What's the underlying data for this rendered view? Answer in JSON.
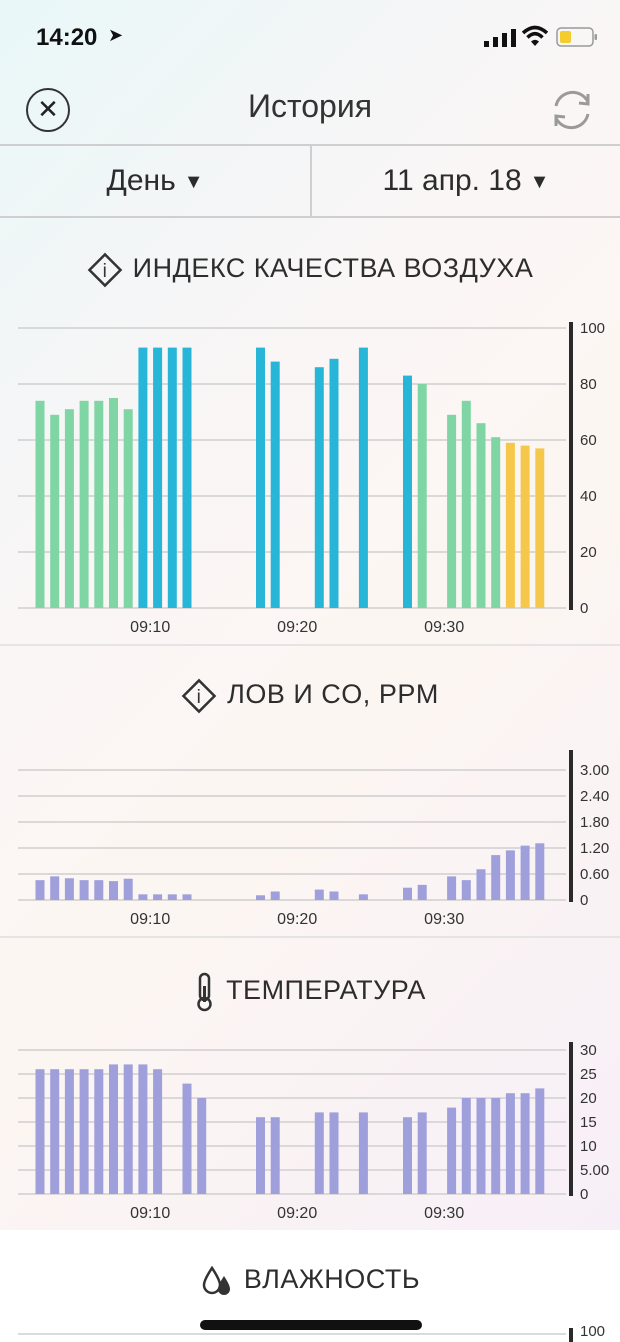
{
  "status": {
    "time": "14:20",
    "arrow": "➤"
  },
  "nav": {
    "title": "История",
    "close": "✕"
  },
  "filters": {
    "period": "День",
    "date": "11 апр. 18",
    "dropdown_glyph": "▼"
  },
  "colors": {
    "green": "#7fd5a4",
    "blue": "#27b6d8",
    "yellow": "#f5c84c",
    "purple": "#9f9fdc",
    "axis": "#2a2a2a",
    "grid": "#cfcfcf"
  },
  "aqi": {
    "title": "ИНДЕКС КАЧЕСТВА ВОЗДУХА",
    "icon": "info-diamond-icon",
    "chart_data": {
      "type": "bar",
      "ylim": [
        0,
        100
      ],
      "yticks": [
        "100",
        "80",
        "60",
        "40",
        "20",
        "0"
      ],
      "xticks": [
        "09:10",
        "09:20",
        "09:30"
      ],
      "grid": "horizontal",
      "bars": [
        {
          "t": "09:04",
          "v": 74,
          "c": "green"
        },
        {
          "t": "09:05",
          "v": 69,
          "c": "green"
        },
        {
          "t": "09:06",
          "v": 71,
          "c": "green"
        },
        {
          "t": "09:07",
          "v": 74,
          "c": "green"
        },
        {
          "t": "09:08",
          "v": 74,
          "c": "green"
        },
        {
          "t": "09:09",
          "v": 75,
          "c": "green"
        },
        {
          "t": "09:10",
          "v": 71,
          "c": "green"
        },
        {
          "t": "09:11",
          "v": 93,
          "c": "blue"
        },
        {
          "t": "09:12",
          "v": 93,
          "c": "blue"
        },
        {
          "t": "09:13",
          "v": 93,
          "c": "blue"
        },
        {
          "t": "09:14",
          "v": 93,
          "c": "blue"
        },
        {
          "t": "09:19",
          "v": 93,
          "c": "blue"
        },
        {
          "t": "09:20",
          "v": 88,
          "c": "blue"
        },
        {
          "t": "09:23",
          "v": 86,
          "c": "blue"
        },
        {
          "t": "09:24",
          "v": 89,
          "c": "blue"
        },
        {
          "t": "09:26",
          "v": 93,
          "c": "blue"
        },
        {
          "t": "09:29",
          "v": 83,
          "c": "blue"
        },
        {
          "t": "09:30",
          "v": 80,
          "c": "green"
        },
        {
          "t": "09:32",
          "v": 69,
          "c": "green"
        },
        {
          "t": "09:33",
          "v": 74,
          "c": "green"
        },
        {
          "t": "09:34",
          "v": 66,
          "c": "green"
        },
        {
          "t": "09:35",
          "v": 61,
          "c": "green"
        },
        {
          "t": "09:36",
          "v": 59,
          "c": "yellow"
        },
        {
          "t": "09:37",
          "v": 58,
          "c": "yellow"
        },
        {
          "t": "09:38",
          "v": 57,
          "c": "yellow"
        }
      ]
    }
  },
  "voc": {
    "title": "ЛОВ И CO, PPM",
    "icon": "info-diamond-icon",
    "chart_data": {
      "type": "bar",
      "ylim": [
        0,
        3.3
      ],
      "yticks": [
        "3.00",
        "2.40",
        "1.80",
        "1.20",
        "0.60",
        "0"
      ],
      "xticks": [
        "09:10",
        "09:20",
        "09:30"
      ],
      "grid": "horizontal",
      "bars": [
        {
          "t": "09:04",
          "v": 0.42
        },
        {
          "t": "09:05",
          "v": 0.5
        },
        {
          "t": "09:06",
          "v": 0.46
        },
        {
          "t": "09:07",
          "v": 0.42
        },
        {
          "t": "09:08",
          "v": 0.42
        },
        {
          "t": "09:09",
          "v": 0.4
        },
        {
          "t": "09:10",
          "v": 0.45
        },
        {
          "t": "09:11",
          "v": 0.12
        },
        {
          "t": "09:12",
          "v": 0.12
        },
        {
          "t": "09:13",
          "v": 0.12
        },
        {
          "t": "09:14",
          "v": 0.12
        },
        {
          "t": "09:19",
          "v": 0.1
        },
        {
          "t": "09:20",
          "v": 0.18
        },
        {
          "t": "09:23",
          "v": 0.22
        },
        {
          "t": "09:24",
          "v": 0.18
        },
        {
          "t": "09:26",
          "v": 0.12
        },
        {
          "t": "09:29",
          "v": 0.26
        },
        {
          "t": "09:30",
          "v": 0.32
        },
        {
          "t": "09:32",
          "v": 0.5
        },
        {
          "t": "09:33",
          "v": 0.42
        },
        {
          "t": "09:34",
          "v": 0.65
        },
        {
          "t": "09:35",
          "v": 0.95
        },
        {
          "t": "09:36",
          "v": 1.05
        },
        {
          "t": "09:37",
          "v": 1.15
        },
        {
          "t": "09:38",
          "v": 1.2
        }
      ]
    }
  },
  "temp": {
    "title": "ТЕМПЕРАТУРА",
    "icon": "thermometer-icon",
    "chart_data": {
      "type": "bar",
      "ylim": [
        0,
        30
      ],
      "yticks": [
        "30",
        "25",
        "20",
        "15",
        "10",
        "5.00",
        "0"
      ],
      "xticks": [
        "09:10",
        "09:20",
        "09:30"
      ],
      "grid": "horizontal",
      "bars": [
        {
          "t": "09:04",
          "v": 26
        },
        {
          "t": "09:05",
          "v": 26
        },
        {
          "t": "09:06",
          "v": 26
        },
        {
          "t": "09:07",
          "v": 26
        },
        {
          "t": "09:08",
          "v": 26
        },
        {
          "t": "09:09",
          "v": 27
        },
        {
          "t": "09:10",
          "v": 27
        },
        {
          "t": "09:11",
          "v": 27
        },
        {
          "t": "09:12",
          "v": 26
        },
        {
          "t": "09:14",
          "v": 23
        },
        {
          "t": "09:15",
          "v": 20
        },
        {
          "t": "09:19",
          "v": 16
        },
        {
          "t": "09:20",
          "v": 16
        },
        {
          "t": "09:23",
          "v": 17
        },
        {
          "t": "09:24",
          "v": 17
        },
        {
          "t": "09:26",
          "v": 17
        },
        {
          "t": "09:29",
          "v": 16
        },
        {
          "t": "09:30",
          "v": 17
        },
        {
          "t": "09:32",
          "v": 18
        },
        {
          "t": "09:33",
          "v": 20
        },
        {
          "t": "09:34",
          "v": 20
        },
        {
          "t": "09:35",
          "v": 20
        },
        {
          "t": "09:36",
          "v": 21
        },
        {
          "t": "09:37",
          "v": 21
        },
        {
          "t": "09:38",
          "v": 22
        }
      ]
    }
  },
  "humidity": {
    "title": "ВЛАЖНОСТЬ",
    "icon": "drops-icon",
    "top_tick": "100"
  }
}
